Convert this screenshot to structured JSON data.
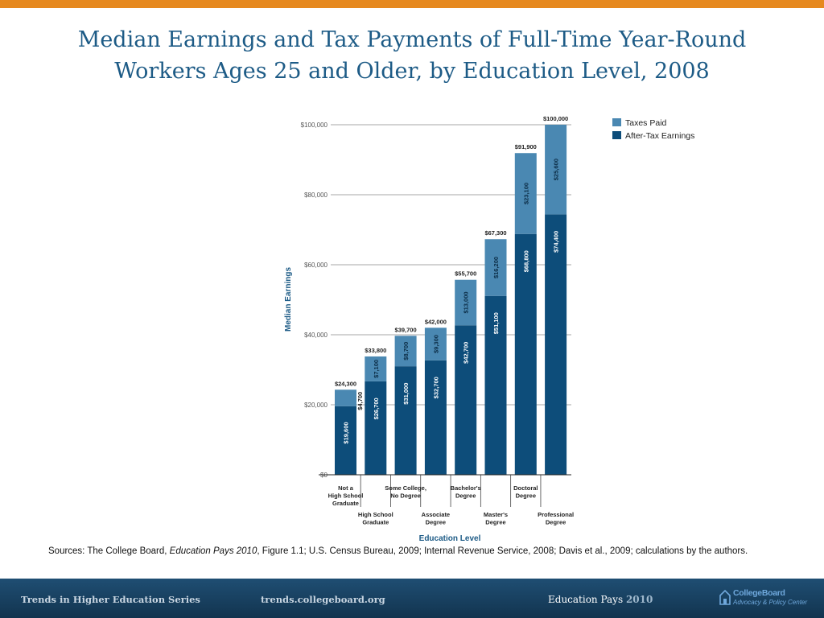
{
  "colors": {
    "top_bar": "#e6891f",
    "title": "#1d5b86",
    "taxes": "#4a88b2",
    "after_tax": "#0d4d7a",
    "footer_top": "#1f4e73",
    "footer_bottom": "#12344f"
  },
  "slide": {
    "title_line1": "Median Earnings and Tax Payments of Full-Time Year-Round",
    "title_line2": "Workers Ages 25 and Older, by Education Level, 2008"
  },
  "chart_data": {
    "type": "bar",
    "stacked": true,
    "ylim": [
      0,
      100000
    ],
    "grid": true,
    "legend_placement": "top-right",
    "ylabel": "Median Earnings",
    "xlabel": "Education Level",
    "y_ticks": [
      {
        "value": 0,
        "label": "$0"
      },
      {
        "value": 20000,
        "label": "$20,000"
      },
      {
        "value": 40000,
        "label": "$40,000"
      },
      {
        "value": 60000,
        "label": "$60,000"
      },
      {
        "value": 80000,
        "label": "$80,000"
      },
      {
        "value": 100000,
        "label": "$100,000"
      }
    ],
    "categories": [
      {
        "lines": [
          "Not a",
          "High School",
          "Graduate"
        ],
        "row": "top"
      },
      {
        "lines": [
          "High School",
          "Graduate"
        ],
        "row": "bottom"
      },
      {
        "lines": [
          "Some College,",
          "No Degree"
        ],
        "row": "top"
      },
      {
        "lines": [
          "Associate",
          "Degree"
        ],
        "row": "bottom"
      },
      {
        "lines": [
          "Bachelor's",
          "Degree"
        ],
        "row": "top"
      },
      {
        "lines": [
          "Master's",
          "Degree"
        ],
        "row": "bottom"
      },
      {
        "lines": [
          "Doctoral",
          "Degree"
        ],
        "row": "top"
      },
      {
        "lines": [
          "Professional",
          "Degree"
        ],
        "row": "bottom"
      }
    ],
    "series": [
      {
        "name": "After-Tax Earnings",
        "color": "#0d4d7a",
        "values": [
          19600,
          26700,
          31000,
          32700,
          42700,
          51100,
          68800,
          74400
        ],
        "labels": [
          "$19,600",
          "$26,700",
          "$31,000",
          "$32,700",
          "$42,700",
          "$51,100",
          "$68,800",
          "$74,400"
        ]
      },
      {
        "name": "Taxes Paid",
        "color": "#4a88b2",
        "values": [
          4700,
          7100,
          8700,
          9300,
          13000,
          16200,
          23100,
          25600
        ],
        "labels": [
          "$4,700",
          "$7,100",
          "$8,700",
          "$9,300",
          "$13,000",
          "$16,200",
          "$23,100",
          "$25,600"
        ]
      }
    ],
    "totals": [
      "$24,300",
      "$33,800",
      "$39,700",
      "$42,000",
      "$55,700",
      "$67,300",
      "$91,900",
      "$100,000"
    ]
  },
  "sources": {
    "prefix": "Sources: The College Board, ",
    "italic": "Education Pays 2010",
    "suffix": ", Figure 1.1; U.S. Census Bureau, 2009; Internal Revenue Service, 2008; Davis et al., 2009; calculations by the authors."
  },
  "footer": {
    "series_text": "Trends in Higher Education Series",
    "url": "trends.collegeboard.org",
    "publication": "Education Pays",
    "publication_year": "2010",
    "logo_name": "CollegeBoard",
    "logo_sub": "Advocacy & Policy Center"
  }
}
